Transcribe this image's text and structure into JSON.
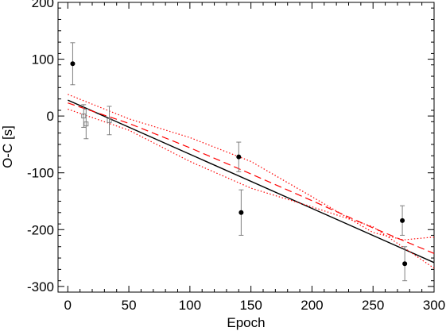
{
  "chart_data": {
    "type": "scatter",
    "title": "",
    "xlabel": "Epoch",
    "ylabel": "O-C [s]",
    "xlim": [
      -8,
      300
    ],
    "ylim": [
      -310,
      200
    ],
    "xticks": [
      0,
      50,
      100,
      150,
      200,
      250,
      300
    ],
    "yticks": [
      -300,
      -200,
      -100,
      0,
      100,
      200
    ],
    "grid": false,
    "series": [
      {
        "marker": "filled-circle",
        "color": "#000000",
        "error_color": "#808080",
        "points": [
          {
            "x": 4,
            "y": 92,
            "err": 37
          },
          {
            "x": 140,
            "y": -72,
            "err": 26
          },
          {
            "x": 142,
            "y": -170,
            "err": 40
          },
          {
            "x": 274,
            "y": -184,
            "err": 26
          },
          {
            "x": 276,
            "y": -260,
            "err": 30
          }
        ]
      },
      {
        "marker": "open-square",
        "color": "#808080",
        "error_color": "#808080",
        "points": [
          {
            "x": 13,
            "y": 0,
            "err": 20
          },
          {
            "x": 15,
            "y": -14,
            "err": 26
          },
          {
            "x": 34,
            "y": -8,
            "err": 25
          }
        ]
      }
    ],
    "lines": [
      {
        "style": "solid",
        "color": "#000000",
        "x": [
          0,
          300
        ],
        "y": [
          28,
          -258
        ]
      },
      {
        "style": "dashed",
        "color": "#ff0000",
        "x": [
          0,
          50,
          100,
          150,
          200,
          250,
          300
        ],
        "y": [
          23,
          -13,
          -56,
          -102,
          -149,
          -197,
          -242
        ]
      },
      {
        "style": "dotted",
        "color": "#ff0000",
        "x": [
          0,
          50,
          100,
          150,
          200,
          250,
          275,
          300
        ],
        "y": [
          38,
          -5,
          -38,
          -80,
          -142,
          -205,
          -218,
          -213
        ]
      },
      {
        "style": "dotted",
        "color": "#ff0000",
        "x": [
          0,
          50,
          100,
          150,
          200,
          250,
          300
        ],
        "y": [
          12,
          -25,
          -80,
          -127,
          -160,
          -195,
          -268
        ]
      }
    ]
  }
}
